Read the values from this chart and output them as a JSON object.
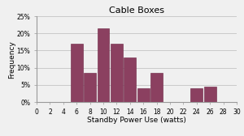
{
  "title": "Cable Boxes",
  "xlabel": "Standby Power Use (watts)",
  "ylabel": "Frequency",
  "bar_positions": [
    6,
    8,
    10,
    12,
    14,
    16,
    18,
    24,
    26
  ],
  "bar_heights": [
    17,
    8.5,
    21.5,
    17,
    13,
    4,
    8.5,
    4,
    4.5
  ],
  "bar_width": 1.8,
  "bar_color": "#8B4060",
  "bar_edge_color": "#6a2040",
  "xlim": [
    0,
    30
  ],
  "ylim": [
    0,
    25
  ],
  "xticks": [
    0,
    2,
    4,
    6,
    8,
    10,
    12,
    14,
    16,
    18,
    20,
    22,
    24,
    26,
    28,
    30
  ],
  "yticks": [
    0,
    5,
    10,
    15,
    20,
    25
  ],
  "ytick_labels": [
    "0%",
    "5%",
    "10%",
    "15%",
    "20%",
    "25%"
  ],
  "background_color": "#f0f0f0",
  "plot_bg_color": "#f0f0f0",
  "grid_color": "#bbbbbb",
  "title_fontsize": 8,
  "axis_label_fontsize": 6.5,
  "tick_fontsize": 5.5
}
